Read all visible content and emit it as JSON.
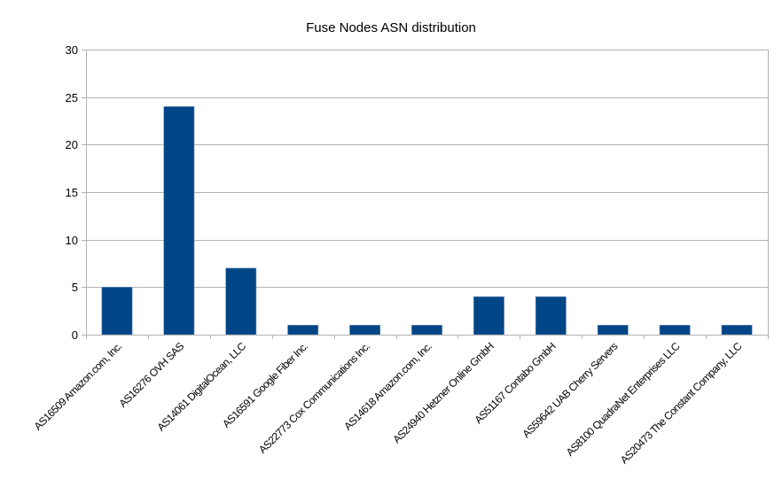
{
  "chart_data": {
    "type": "bar",
    "title": "Fuse Nodes ASN distribution",
    "xlabel": "",
    "ylabel": "",
    "ylim": [
      0,
      30
    ],
    "yticks": [
      0,
      5,
      10,
      15,
      20,
      25,
      30
    ],
    "grid": true,
    "legend": null,
    "bar_color": "#004586",
    "categories": [
      "AS16509 Amazon.com, Inc.",
      "AS16276 OVH SAS",
      "AS14061 DigitalOcean, LLC",
      "AS16591 Google Fiber Inc.",
      "AS22773 Cox Communications Inc.",
      "AS14618 Amazon.com, Inc.",
      "AS24940 Hetzner Online GmbH",
      "AS51167 Contabo GmbH",
      "AS59642 UAB Cherry Servers",
      "AS8100 QuadraNet Enterprises LLC",
      "AS20473 The Constant Company, LLC"
    ],
    "values": [
      5,
      24,
      7,
      1,
      1,
      1,
      4,
      4,
      1,
      1,
      1
    ]
  }
}
